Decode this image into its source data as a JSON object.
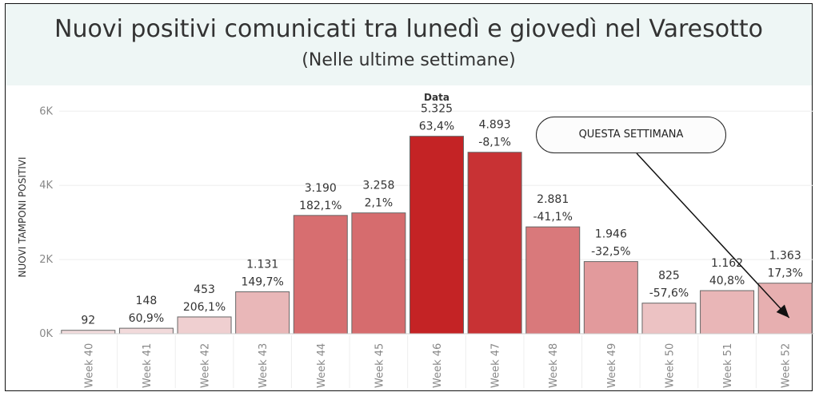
{
  "header": {
    "title": "Nuovi positivi comunicati tra lunedì e giovedì nel Varesotto",
    "subtitle": "(Nelle ultime settimane)"
  },
  "callout": {
    "text": "QUESTA SETTIMANA"
  },
  "chart_data": {
    "type": "bar",
    "title": "Nuovi positivi comunicati tra lunedì e giovedì nel Varesotto",
    "subtitle": "(Nelle ultime settimane)",
    "xlabel": "Data",
    "ylabel": "NUOVI TAMPONI POSITIVI",
    "ylim": [
      0,
      6200
    ],
    "yticks": [
      0,
      2000,
      4000,
      6000
    ],
    "ytick_labels": [
      "0K",
      "2K",
      "4K",
      "6K"
    ],
    "grid": true,
    "categories": [
      "Week 40",
      "Week 41",
      "Week 42",
      "Week 43",
      "Week 44",
      "Week 45",
      "Week 46",
      "Week 47",
      "Week 48",
      "Week 49",
      "Week 50",
      "Week 51",
      "Week 52"
    ],
    "values": [
      92,
      148,
      453,
      1131,
      3190,
      3258,
      5325,
      4893,
      2881,
      1946,
      825,
      1162,
      1363
    ],
    "value_labels": [
      "92",
      "148",
      "453",
      "1.131",
      "3.190",
      "3.258",
      "5.325",
      "4.893",
      "2.881",
      "1.946",
      "825",
      "1.162",
      "1.363"
    ],
    "pct_labels": [
      "",
      "60,9%",
      "206,1%",
      "149,7%",
      "182,1%",
      "2,1%",
      "63,4%",
      "-8,1%",
      "-41,1%",
      "-32,5%",
      "-57,6%",
      "40,8%",
      "17,3%"
    ],
    "pct_values": [
      null,
      60.9,
      206.1,
      149.7,
      182.1,
      2.1,
      63.4,
      -8.1,
      -41.1,
      -32.5,
      -57.6,
      40.8,
      17.3
    ],
    "colors": {
      "low": "#f2dcdd",
      "high": "#c42325",
      "bar_stroke": "#666666",
      "text": "#333333",
      "axis_text": "#888888",
      "grid": "#eeeeee"
    }
  }
}
